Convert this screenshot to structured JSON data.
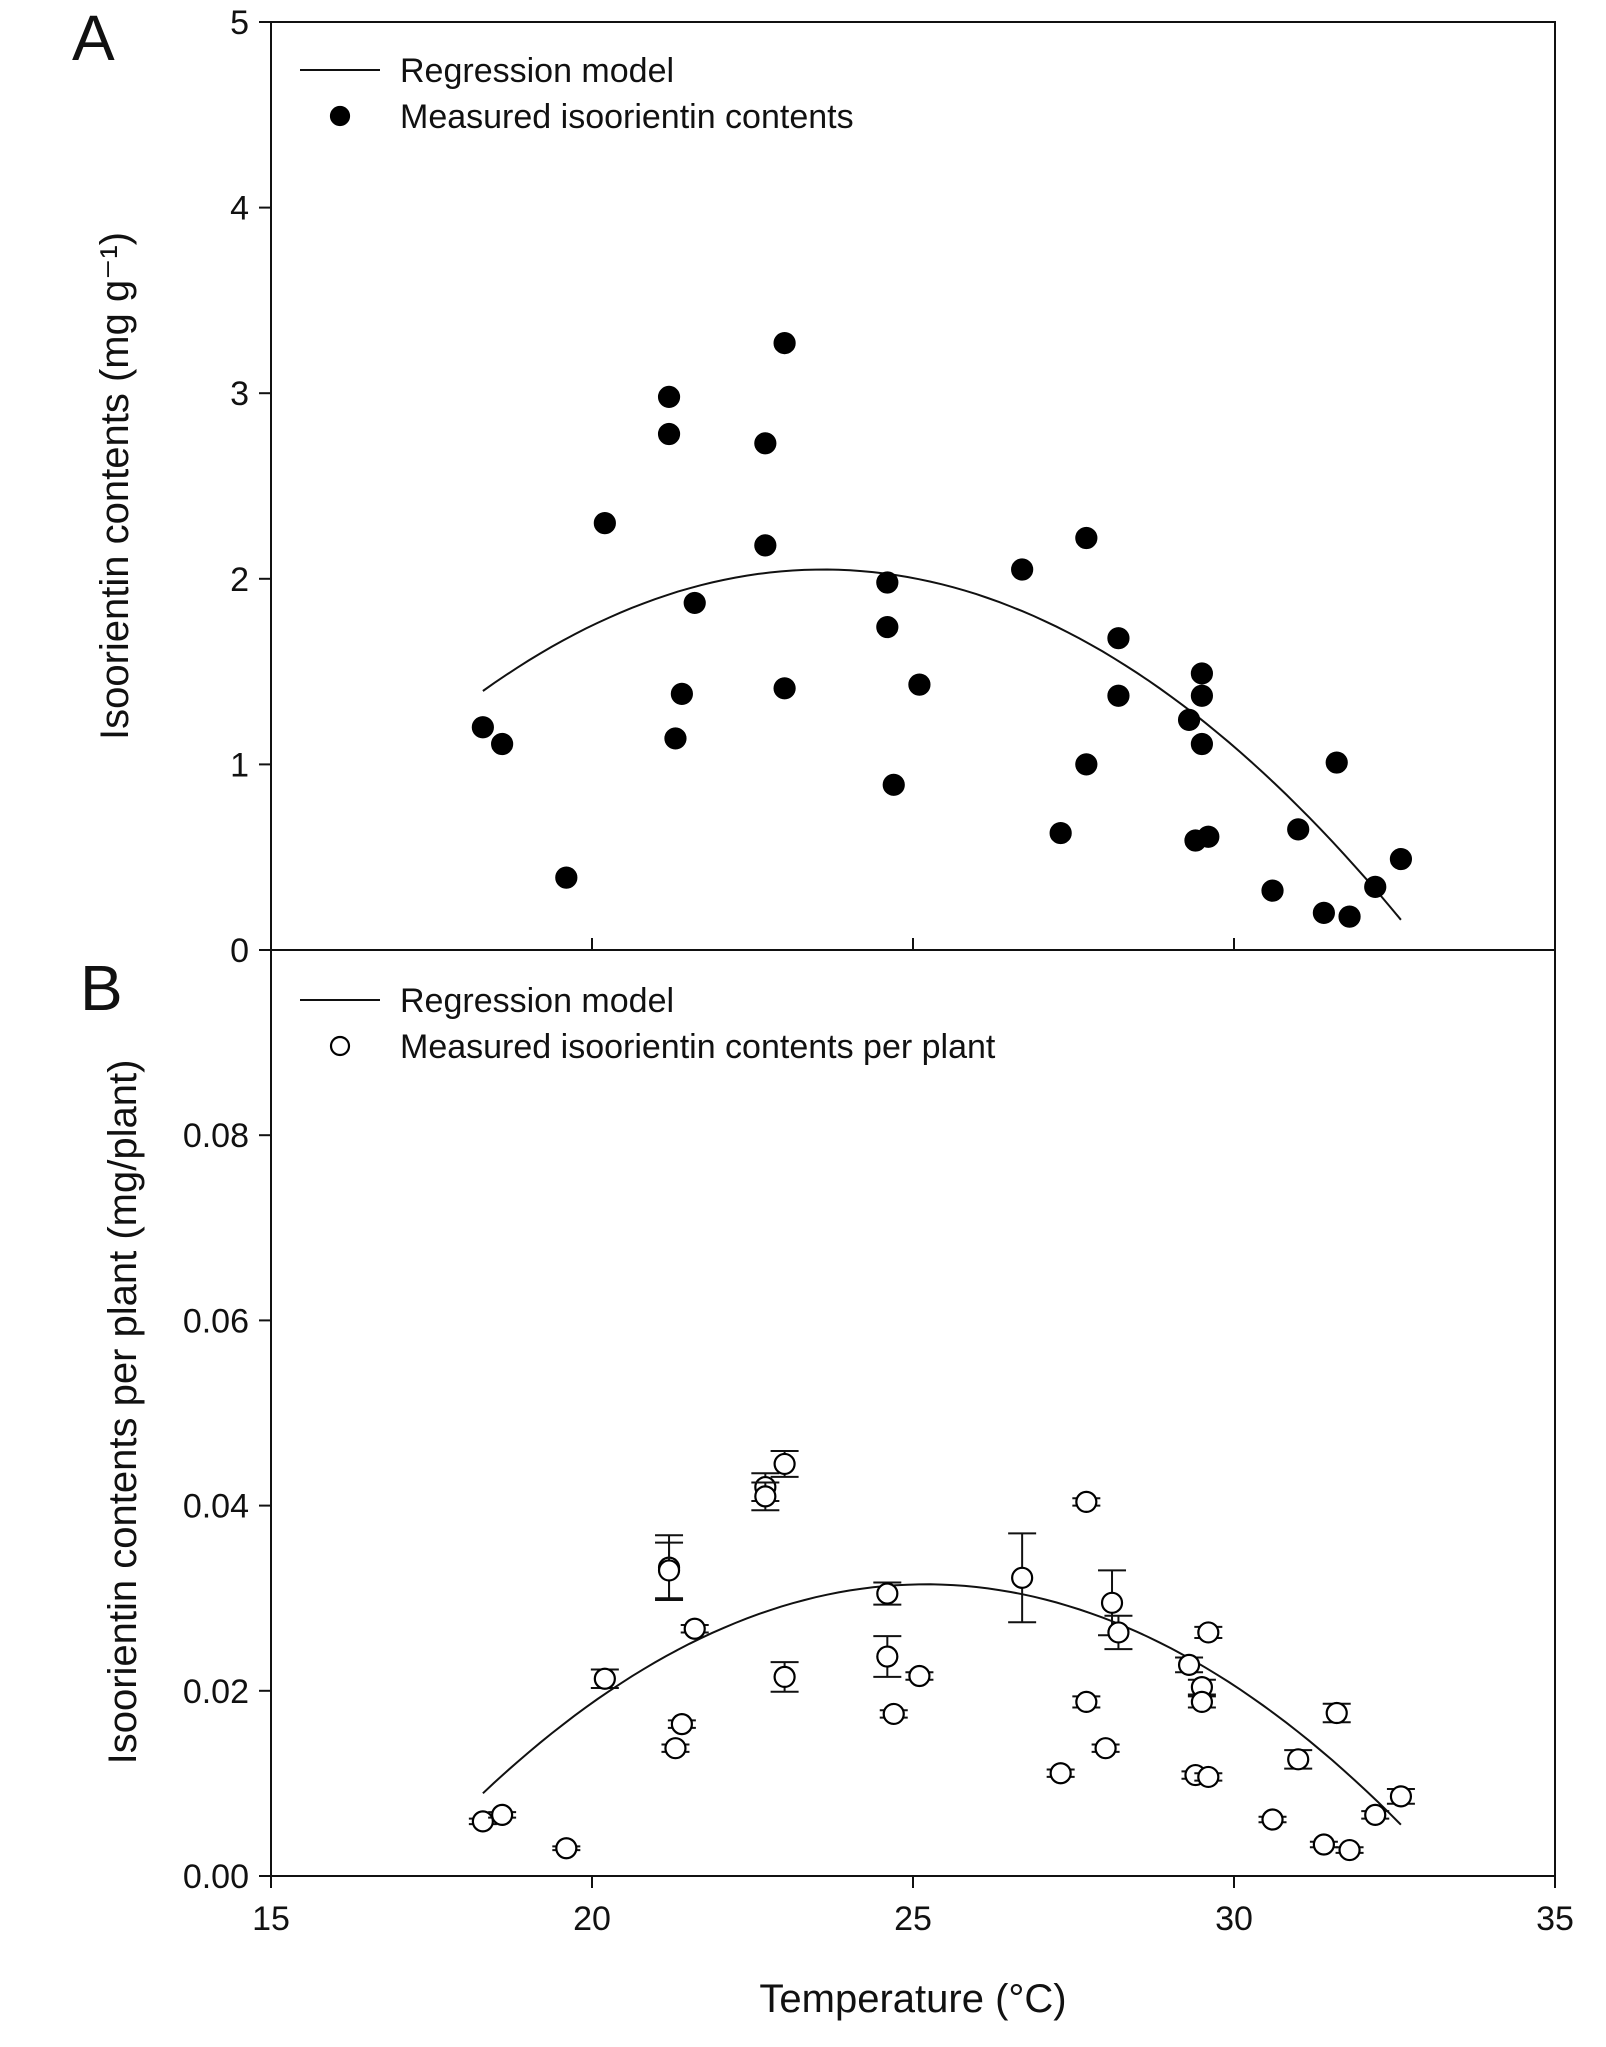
{
  "chart_data": [
    {
      "panel": "A",
      "type": "scatter",
      "xlabel": "Temperature (°C)",
      "ylabel": "Isoorientin contents (mg g⁻¹)",
      "xlim": [
        15,
        35
      ],
      "ylim": [
        0,
        5
      ],
      "x_ticks": [
        "15",
        "20",
        "25",
        "30",
        "35"
      ],
      "y_ticks": [
        "0",
        "1",
        "2",
        "3",
        "4",
        "5"
      ],
      "y_tick_values": [
        0,
        1,
        2,
        3,
        4,
        5
      ],
      "legend": {
        "position": "top-left",
        "entries": [
          "Regression model",
          "Measured isoorientin contents"
        ]
      },
      "regression": {
        "name": "Regression model",
        "form": "quadratic",
        "x_range": [
          18.3,
          32.6
        ],
        "x_peak": 23.6,
        "y_peak": 2.05,
        "curvature": -0.0233
      },
      "series": [
        {
          "name": "Measured isoorientin contents",
          "marker": "filled-circle",
          "points": [
            {
              "x": 18.3,
              "y": 1.2
            },
            {
              "x": 18.6,
              "y": 1.11
            },
            {
              "x": 19.6,
              "y": 0.39
            },
            {
              "x": 20.2,
              "y": 2.3
            },
            {
              "x": 21.2,
              "y": 2.98
            },
            {
              "x": 21.2,
              "y": 2.78
            },
            {
              "x": 21.3,
              "y": 1.14
            },
            {
              "x": 21.4,
              "y": 1.38
            },
            {
              "x": 21.6,
              "y": 1.87
            },
            {
              "x": 22.7,
              "y": 2.73
            },
            {
              "x": 22.7,
              "y": 2.18
            },
            {
              "x": 23.0,
              "y": 3.27
            },
            {
              "x": 23.0,
              "y": 1.41
            },
            {
              "x": 24.6,
              "y": 1.98
            },
            {
              "x": 24.6,
              "y": 1.74
            },
            {
              "x": 24.7,
              "y": 0.89
            },
            {
              "x": 25.1,
              "y": 1.43
            },
            {
              "x": 26.7,
              "y": 2.05
            },
            {
              "x": 27.3,
              "y": 0.63
            },
            {
              "x": 27.7,
              "y": 2.22
            },
            {
              "x": 27.7,
              "y": 1.0
            },
            {
              "x": 28.2,
              "y": 1.68
            },
            {
              "x": 28.2,
              "y": 1.37
            },
            {
              "x": 29.3,
              "y": 1.24
            },
            {
              "x": 29.4,
              "y": 0.59
            },
            {
              "x": 29.5,
              "y": 1.49
            },
            {
              "x": 29.5,
              "y": 1.37
            },
            {
              "x": 29.5,
              "y": 1.11
            },
            {
              "x": 29.6,
              "y": 0.61
            },
            {
              "x": 30.6,
              "y": 0.32
            },
            {
              "x": 31.0,
              "y": 0.65
            },
            {
              "x": 31.4,
              "y": 0.2
            },
            {
              "x": 31.6,
              "y": 1.01
            },
            {
              "x": 31.8,
              "y": 0.18
            },
            {
              "x": 32.2,
              "y": 0.34
            },
            {
              "x": 32.6,
              "y": 0.49
            }
          ]
        }
      ]
    },
    {
      "panel": "B",
      "type": "scatter",
      "xlabel": "Temperature (°C)",
      "ylabel": "Isoorientin contents per plant (mg/plant)",
      "xlim": [
        15,
        35
      ],
      "ylim": [
        0,
        0.1
      ],
      "x_ticks": [
        "15",
        "20",
        "25",
        "30",
        "35"
      ],
      "y_ticks": [
        "0.00",
        "0.02",
        "0.04",
        "0.06",
        "0.08"
      ],
      "y_tick_values": [
        0,
        0.02,
        0.04,
        0.06,
        0.08
      ],
      "legend": {
        "position": "top-left",
        "entries": [
          "Regression model",
          "Measured isoorientin contents per plant"
        ]
      },
      "regression": {
        "name": "Regression model",
        "form": "quadratic",
        "x_range": [
          18.3,
          32.6
        ],
        "x_peak": 25.2,
        "y_peak": 0.0315,
        "curvature": -0.000474
      },
      "series": [
        {
          "name": "Measured isoorientin contents per plant",
          "marker": "open-circle",
          "points": [
            {
              "x": 18.3,
              "y": 0.0059,
              "err": 0.0003
            },
            {
              "x": 18.6,
              "y": 0.0066,
              "err": 0.0003
            },
            {
              "x": 19.6,
              "y": 0.003,
              "err": 0.0002
            },
            {
              "x": 20.2,
              "y": 0.0213,
              "err": 0.001
            },
            {
              "x": 21.2,
              "y": 0.0333,
              "err": 0.0035
            },
            {
              "x": 21.2,
              "y": 0.033,
              "err": 0.003
            },
            {
              "x": 21.3,
              "y": 0.0138,
              "err": 0.0004
            },
            {
              "x": 21.4,
              "y": 0.0164,
              "err": 0.0004
            },
            {
              "x": 21.6,
              "y": 0.0267,
              "err": 0.0004
            },
            {
              "x": 22.7,
              "y": 0.042,
              "err": 0.0015
            },
            {
              "x": 22.7,
              "y": 0.041,
              "err": 0.0015
            },
            {
              "x": 23.0,
              "y": 0.0445,
              "err": 0.0014
            },
            {
              "x": 23.0,
              "y": 0.0215,
              "err": 0.0016
            },
            {
              "x": 24.6,
              "y": 0.0305,
              "err": 0.0012
            },
            {
              "x": 24.6,
              "y": 0.0237,
              "err": 0.0022
            },
            {
              "x": 24.7,
              "y": 0.0175,
              "err": 0.0004
            },
            {
              "x": 25.1,
              "y": 0.0216,
              "err": 0.0004
            },
            {
              "x": 26.7,
              "y": 0.0322,
              "err": 0.0048
            },
            {
              "x": 27.3,
              "y": 0.0111,
              "err": 0.0004
            },
            {
              "x": 27.7,
              "y": 0.0404,
              "err": 0.0004
            },
            {
              "x": 27.7,
              "y": 0.0188,
              "err": 0.0006
            },
            {
              "x": 28.0,
              "y": 0.0138,
              "err": 0.0004
            },
            {
              "x": 28.1,
              "y": 0.0295,
              "err": 0.0035
            },
            {
              "x": 28.2,
              "y": 0.0263,
              "err": 0.0018
            },
            {
              "x": 29.3,
              "y": 0.0228,
              "err": 0.0008
            },
            {
              "x": 29.4,
              "y": 0.0109,
              "err": 0.0004
            },
            {
              "x": 29.5,
              "y": 0.0204,
              "err": 0.0008
            },
            {
              "x": 29.5,
              "y": 0.0188,
              "err": 0.0006
            },
            {
              "x": 29.6,
              "y": 0.0263,
              "err": 0.0006
            },
            {
              "x": 29.6,
              "y": 0.0107,
              "err": 0.0004
            },
            {
              "x": 30.6,
              "y": 0.0061,
              "err": 0.0003
            },
            {
              "x": 31.0,
              "y": 0.0126,
              "err": 0.001
            },
            {
              "x": 31.4,
              "y": 0.0034,
              "err": 0.0003
            },
            {
              "x": 31.6,
              "y": 0.0176,
              "err": 0.001
            },
            {
              "x": 31.8,
              "y": 0.0028,
              "err": 0.0003
            },
            {
              "x": 32.2,
              "y": 0.0066,
              "err": 0.0004
            },
            {
              "x": 32.6,
              "y": 0.0086,
              "err": 0.0008
            }
          ]
        }
      ]
    }
  ]
}
